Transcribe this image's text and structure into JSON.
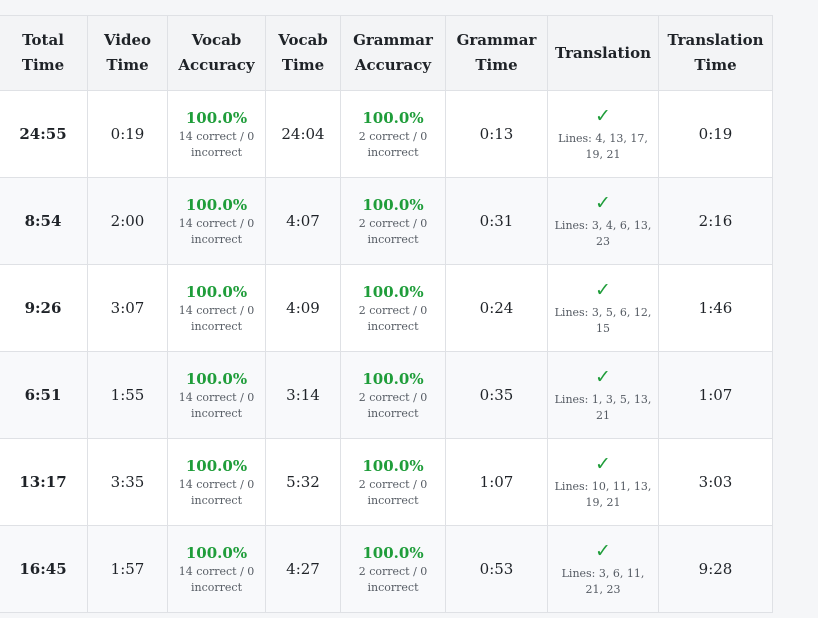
{
  "columns": [
    {
      "line1": "Total",
      "line2": "Time"
    },
    {
      "line1": "Video",
      "line2": "Time"
    },
    {
      "line1": "Vocab",
      "line2": "Accuracy"
    },
    {
      "line1": "Vocab",
      "line2": "Time"
    },
    {
      "line1": "Grammar",
      "line2": "Accuracy"
    },
    {
      "line1": "Grammar",
      "line2": "Time"
    },
    {
      "line1": "Translation",
      "line2": ""
    },
    {
      "line1": "Translation",
      "line2": "Time"
    }
  ],
  "rows": [
    {
      "total_time": "24:55",
      "video_time": "0:19",
      "vocab_pct": "100.0%",
      "vocab_detail": "14 correct / 0 incorrect",
      "vocab_time": "24:04",
      "grammar_pct": "100.0%",
      "grammar_detail": "2 correct / 0 incorrect",
      "grammar_time": "0:13",
      "translation_mark": "✓",
      "translation_lines": "Lines: 4, 13, 17, 19, 21",
      "translation_time": "0:19"
    },
    {
      "total_time": "8:54",
      "video_time": "2:00",
      "vocab_pct": "100.0%",
      "vocab_detail": "14 correct / 0 incorrect",
      "vocab_time": "4:07",
      "grammar_pct": "100.0%",
      "grammar_detail": "2 correct / 0 incorrect",
      "grammar_time": "0:31",
      "translation_mark": "✓",
      "translation_lines": "Lines: 3, 4, 6, 13, 23",
      "translation_time": "2:16"
    },
    {
      "total_time": "9:26",
      "video_time": "3:07",
      "vocab_pct": "100.0%",
      "vocab_detail": "14 correct / 0 incorrect",
      "vocab_time": "4:09",
      "grammar_pct": "100.0%",
      "grammar_detail": "2 correct / 0 incorrect",
      "grammar_time": "0:24",
      "translation_mark": "✓",
      "translation_lines": "Lines: 3, 5, 6, 12, 15",
      "translation_time": "1:46"
    },
    {
      "total_time": "6:51",
      "video_time": "1:55",
      "vocab_pct": "100.0%",
      "vocab_detail": "14 correct / 0 incorrect",
      "vocab_time": "3:14",
      "grammar_pct": "100.0%",
      "grammar_detail": "2 correct / 0 incorrect",
      "grammar_time": "0:35",
      "translation_mark": "✓",
      "translation_lines": "Lines: 1, 3, 5, 13, 21",
      "translation_time": "1:07"
    },
    {
      "total_time": "13:17",
      "video_time": "3:35",
      "vocab_pct": "100.0%",
      "vocab_detail": "14 correct / 0 incorrect",
      "vocab_time": "5:32",
      "grammar_pct": "100.0%",
      "grammar_detail": "2 correct / 0 incorrect",
      "grammar_time": "1:07",
      "translation_mark": "✓",
      "translation_lines": "Lines: 10, 11, 13, 19, 21",
      "translation_time": "3:03"
    },
    {
      "total_time": "16:45",
      "video_time": "1:57",
      "vocab_pct": "100.0%",
      "vocab_detail": "14 correct / 0 incorrect",
      "vocab_time": "4:27",
      "grammar_pct": "100.0%",
      "grammar_detail": "2 correct / 0 incorrect",
      "grammar_time": "0:53",
      "translation_mark": "✓",
      "translation_lines": "Lines: 3, 6, 11, 21, 23",
      "translation_time": "9:28"
    }
  ],
  "colors": {
    "success": "#1f9d3a",
    "header_bg": "#f3f4f6",
    "border": "#dfe1e5",
    "page_bg": "#f5f6f8"
  }
}
